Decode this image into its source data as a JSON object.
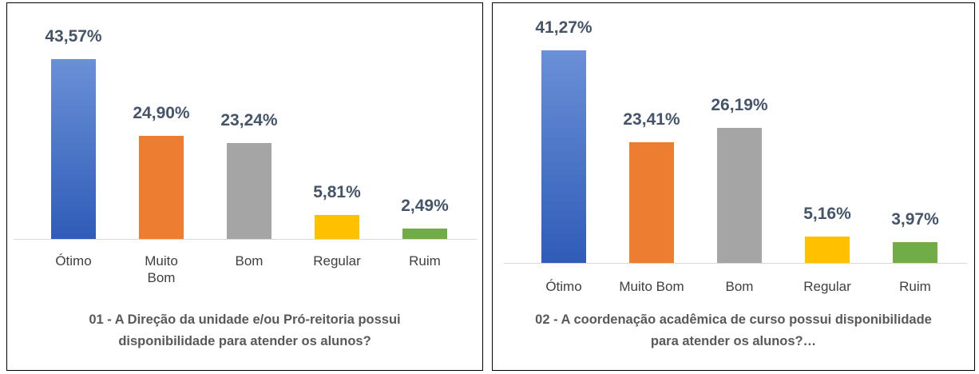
{
  "chart_data": [
    {
      "type": "bar",
      "title": "01 - A Direção da unidade e/ou Pró-reitoria possui disponibilidade para atender os alunos?",
      "categories": [
        "Ótimo",
        "Muito Bom",
        "Bom",
        "Regular",
        "Ruim"
      ],
      "values": [
        43.57,
        24.9,
        23.24,
        5.81,
        2.49
      ],
      "value_labels": [
        "43,57%",
        "24,90%",
        "23,24%",
        "5,81%",
        "2,49%"
      ],
      "colors": [
        "#4472c4",
        "#ed7d31",
        "#a5a5a5",
        "#ffc000",
        "#70ad47"
      ]
    },
    {
      "type": "bar",
      "title": "02 - A coordenação acadêmica de curso possui disponibilidade para atender os alunos?…",
      "categories": [
        "Ótimo",
        "Muito Bom",
        "Bom",
        "Regular",
        "Ruim"
      ],
      "values": [
        41.27,
        23.41,
        26.19,
        5.16,
        3.97
      ],
      "value_labels": [
        "41,27%",
        "23,41%",
        "26,19%",
        "5,16%",
        "3,97%"
      ],
      "colors": [
        "#4472c4",
        "#ed7d31",
        "#a5a5a5",
        "#ffc000",
        "#70ad47"
      ]
    }
  ]
}
